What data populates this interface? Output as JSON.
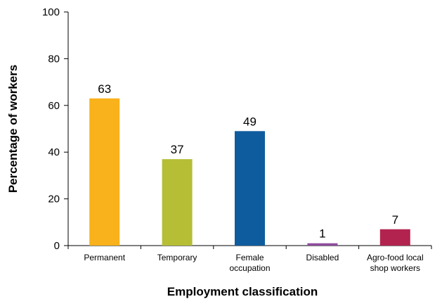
{
  "chart_data": {
    "type": "bar",
    "title": "",
    "xlabel": "Employment classification",
    "ylabel": "Percentage of workers",
    "ylim": [
      0,
      100
    ],
    "yticks": [
      0,
      20,
      40,
      60,
      80,
      100
    ],
    "grid": false,
    "legend": "none",
    "categories": [
      [
        "Permanent"
      ],
      [
        "Temporary"
      ],
      [
        "Female",
        "occupation"
      ],
      [
        "Disabled"
      ],
      [
        "Agro-food local",
        "shop workers"
      ]
    ],
    "values": [
      63,
      37,
      49,
      1,
      7
    ],
    "colors": [
      "#F9B21B",
      "#B5BE35",
      "#0E5C9E",
      "#8E4C9D",
      "#B3234F"
    ]
  }
}
